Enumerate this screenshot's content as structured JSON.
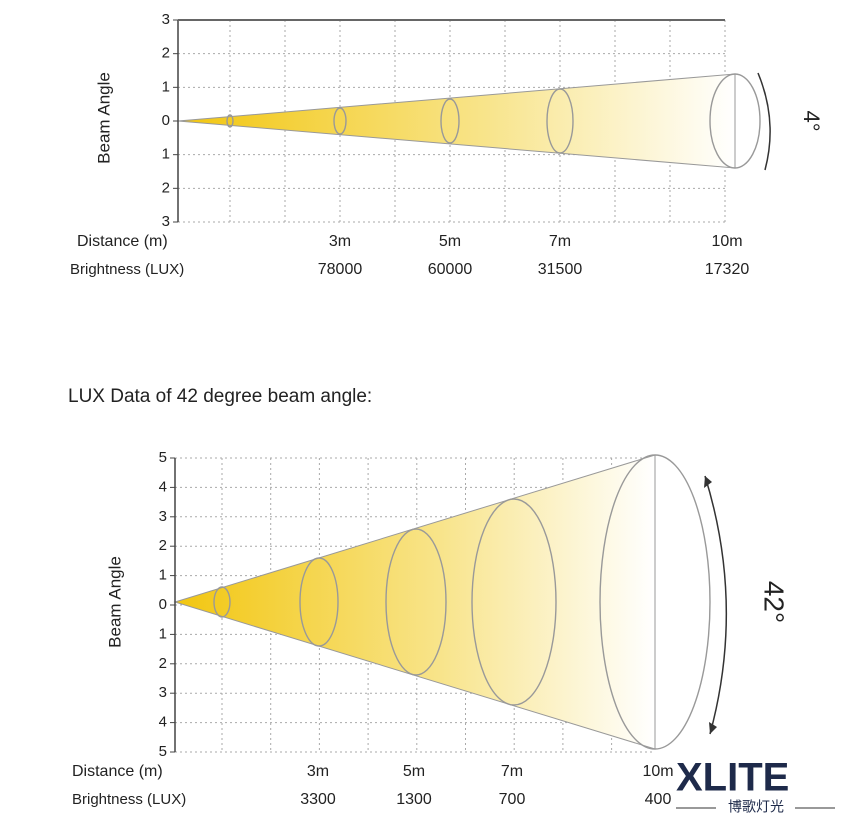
{
  "diagram_1": {
    "y_axis_label": "Beam Angle",
    "y_ticks": [
      "3",
      "2",
      "1",
      "0",
      "1",
      "2",
      "3"
    ],
    "angle_label": "4°",
    "distance_label": "Distance (m)",
    "brightness_label": "Brightness (LUX)",
    "distances": [
      "3m",
      "5m",
      "7m",
      "10m"
    ],
    "brightness": [
      "78000",
      "60000",
      "31500",
      "17320"
    ]
  },
  "section_title": "LUX Data of 42 degree beam angle:",
  "diagram_2": {
    "y_axis_label": "Beam Angle",
    "y_ticks": [
      "5",
      "4",
      "3",
      "2",
      "1",
      "0",
      "1",
      "2",
      "3",
      "4",
      "5"
    ],
    "angle_label": "42°",
    "distance_label": "Distance (m)",
    "brightness_label": "Brightness (LUX)",
    "distances": [
      "3m",
      "5m",
      "7m",
      "10m"
    ],
    "brightness": [
      "3300",
      "1300",
      "700",
      "400"
    ]
  },
  "logo": {
    "name": "XLITE",
    "subtitle": "博歌灯光"
  }
}
